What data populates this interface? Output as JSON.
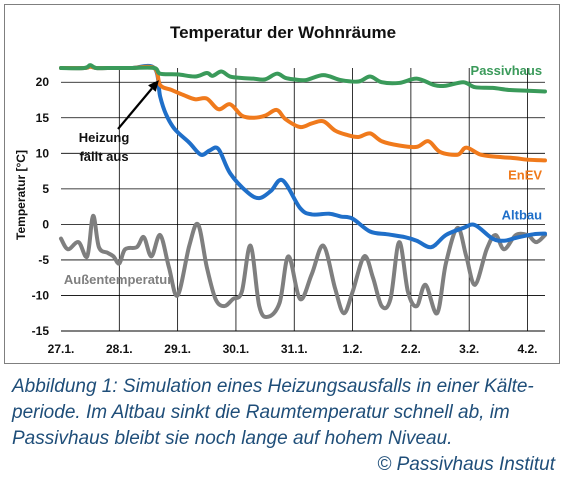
{
  "chart_data": {
    "type": "line",
    "title": "Temperatur der Wohnräume",
    "xlabel": "",
    "ylabel": "Temperatur [°C]",
    "x_categories": [
      "27.1.",
      "28.1.",
      "29.1.",
      "30.1.",
      "31.1.",
      "1.2.",
      "2.2.",
      "3.2.",
      "4.2."
    ],
    "xlim": [
      0,
      8.3
    ],
    "ylim": [
      -15,
      22
    ],
    "yticks": [
      20,
      15,
      10,
      5,
      0,
      -5,
      -10,
      -15
    ],
    "grid": "horizontal and vertical",
    "legend": "inline labels",
    "annotation": {
      "lines": [
        "Heizung",
        "fällt aus"
      ],
      "x": 1.68,
      "y": 20.3
    },
    "series": [
      {
        "name": "Passivhaus",
        "color": "#3a9a5a",
        "x": [
          0,
          0.4,
          0.5,
          0.6,
          0.8,
          1.2,
          1.6,
          1.7,
          2.0,
          2.3,
          2.5,
          2.6,
          2.75,
          2.9,
          3.1,
          3.3,
          3.5,
          3.7,
          3.85,
          4.0,
          4.2,
          4.5,
          4.8,
          5.1,
          5.3,
          5.5,
          5.8,
          6.1,
          6.4,
          6.6,
          6.9,
          7.1,
          7.4,
          7.7,
          8.0,
          8.3
        ],
        "y": [
          22,
          22,
          22.4,
          22,
          22,
          22,
          22,
          21.2,
          21.1,
          20.8,
          21.3,
          20.9,
          21.5,
          20.8,
          20.6,
          20.5,
          20.4,
          21.2,
          20.6,
          20.4,
          20.3,
          21.0,
          20.3,
          20.1,
          20.8,
          20.0,
          19.9,
          20.5,
          19.6,
          19.5,
          20.0,
          19.3,
          19.2,
          18.9,
          18.8,
          18.7
        ]
      },
      {
        "name": "EnEV",
        "color": "#f07a1c",
        "x": [
          0,
          0.4,
          0.5,
          0.6,
          0.8,
          1.2,
          1.6,
          1.7,
          1.9,
          2.1,
          2.3,
          2.5,
          2.7,
          2.9,
          3.1,
          3.3,
          3.5,
          3.7,
          3.85,
          4.1,
          4.3,
          4.5,
          4.7,
          4.9,
          5.1,
          5.3,
          5.5,
          5.8,
          6.1,
          6.3,
          6.5,
          6.8,
          6.95,
          7.2,
          7.5,
          7.8,
          8.0,
          8.3
        ],
        "y": [
          22,
          22,
          22.2,
          22,
          22,
          22,
          22,
          19.6,
          18.9,
          18.2,
          17.6,
          17.7,
          16.2,
          16.9,
          15.3,
          15.0,
          15.3,
          16.1,
          14.8,
          13.7,
          14.2,
          14.5,
          13.2,
          12.6,
          12.3,
          12.8,
          11.7,
          11.1,
          10.9,
          11.7,
          10.2,
          9.8,
          10.8,
          9.8,
          9.5,
          9.3,
          9.1,
          9.0
        ]
      },
      {
        "name": "Altbau",
        "color": "#1f6fc9",
        "x": [
          0,
          0.4,
          0.5,
          0.6,
          0.8,
          1.2,
          1.6,
          1.7,
          1.8,
          1.95,
          2.2,
          2.4,
          2.55,
          2.7,
          2.9,
          3.2,
          3.4,
          3.6,
          3.8,
          4.1,
          4.3,
          4.6,
          4.8,
          5.0,
          5.3,
          5.6,
          5.9,
          6.1,
          6.35,
          6.6,
          6.9,
          7.1,
          7.4,
          7.6,
          7.8,
          8.1,
          8.3
        ],
        "y": [
          22,
          22,
          22.2,
          22,
          22,
          22,
          22,
          18.0,
          15.5,
          13.4,
          11.5,
          9.8,
          10.4,
          10.6,
          7.2,
          4.5,
          3.7,
          4.7,
          6.2,
          2.3,
          1.4,
          1.5,
          1.1,
          0.8,
          -1.0,
          -1.4,
          -1.8,
          -2.3,
          -3.2,
          -1.5,
          -0.5,
          -0.1,
          -2.0,
          -2.3,
          -1.9,
          -1.4,
          -1.3
        ]
      },
      {
        "name": "Außentemperatur",
        "color": "#7f7f7f",
        "x": [
          0,
          0.12,
          0.3,
          0.45,
          0.55,
          0.65,
          0.8,
          0.9,
          1.0,
          1.1,
          1.3,
          1.42,
          1.55,
          1.7,
          1.85,
          2.0,
          2.2,
          2.35,
          2.5,
          2.65,
          2.8,
          2.95,
          3.1,
          3.25,
          3.4,
          3.55,
          3.75,
          3.9,
          4.1,
          4.3,
          4.5,
          4.7,
          4.85,
          5.0,
          5.2,
          5.35,
          5.5,
          5.65,
          5.8,
          5.95,
          6.1,
          6.25,
          6.45,
          6.6,
          6.8,
          6.95,
          7.1,
          7.3,
          7.45,
          7.6,
          7.8,
          8.0,
          8.15,
          8.3
        ],
        "y": [
          -2,
          -3.5,
          -2.5,
          -4.5,
          1.2,
          -3.2,
          -4,
          -4.5,
          -5.5,
          -3.5,
          -3.2,
          -1.8,
          -4.5,
          -1.5,
          -6,
          -10,
          -3,
          0,
          -6,
          -10.5,
          -11.5,
          -10.5,
          -9.5,
          -3,
          -11.5,
          -13,
          -11,
          -4.5,
          -10.5,
          -7,
          -3,
          -9,
          -12.5,
          -9.5,
          -4.5,
          -7.5,
          -11.5,
          -10.5,
          -2.5,
          -9.5,
          -11.5,
          -8.5,
          -12.5,
          -5.5,
          -0.5,
          -4.5,
          -8.5,
          -3.5,
          -1.5,
          -3.5,
          -1.5,
          -1.5,
          -2.5,
          -1.5
        ]
      }
    ]
  },
  "caption": {
    "lines": [
      "Abbildung 1: Simulation eines Heizungsausfalls in einer Kälte-",
      "periode. Im Altbau sinkt die Raumtemperatur schnell ab, im",
      "Passivhaus bleibt sie noch lange auf hohem Niveau."
    ],
    "credit": "© Passivhaus Institut"
  }
}
